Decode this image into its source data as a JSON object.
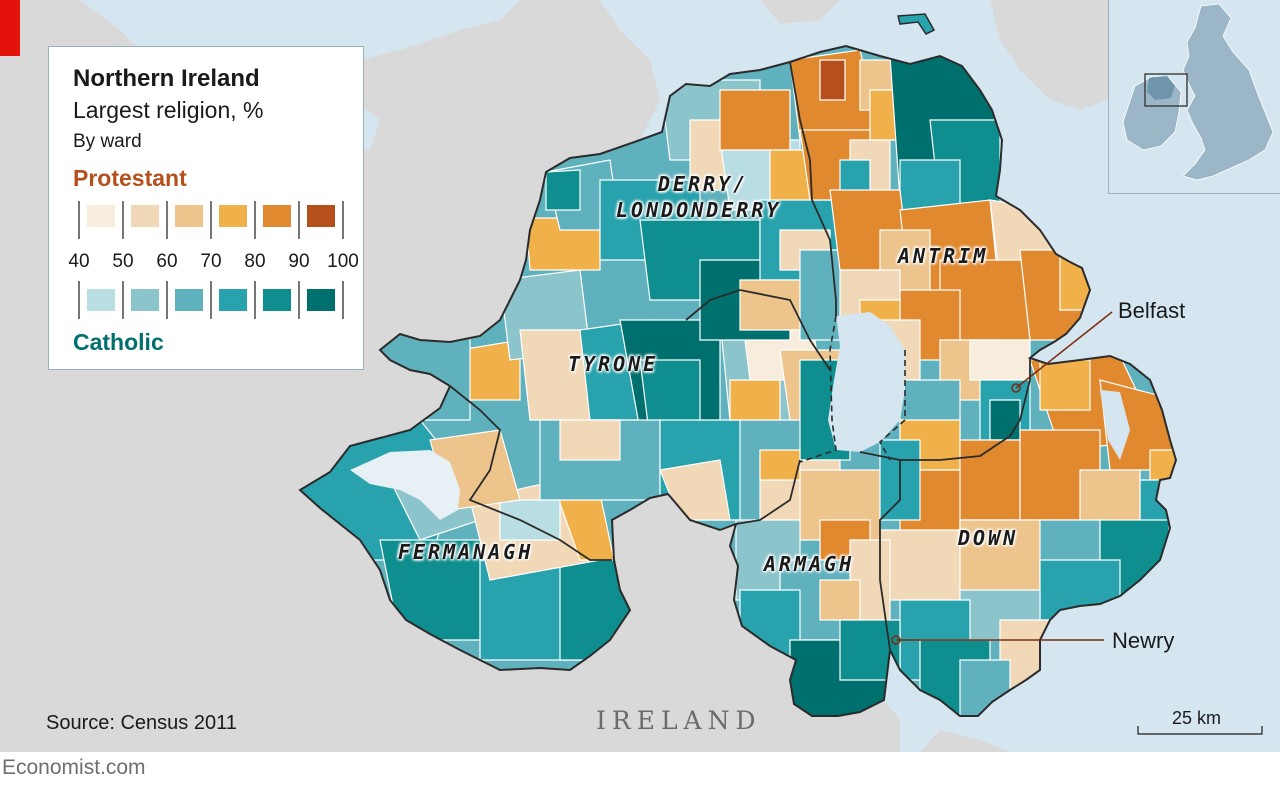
{
  "legend": {
    "title": "Northern Ireland",
    "subtitle": "Largest religion, %",
    "by": "By ward",
    "protestant_label": "Protestant",
    "catholic_label": "Catholic",
    "tick_labels": [
      "40",
      "50",
      "60",
      "70",
      "80",
      "90",
      "100"
    ],
    "protestant_colors": [
      "#f8ecdc",
      "#f1d8b6",
      "#ecc48c",
      "#f0b04a",
      "#e0892e",
      "#b5501c"
    ],
    "catholic_colors": [
      "#b8dde2",
      "#8cc4cc",
      "#5fb2bd",
      "#28a2ad",
      "#0e8e8e",
      "#00706f"
    ]
  },
  "regions": {
    "derry": "DERRY/",
    "londonderry": "LONDONDERRY",
    "antrim": "ANTRIM",
    "tyrone": "TYRONE",
    "fermanagh": "FERMANAGH",
    "armagh": "ARMAGH",
    "down": "DOWN"
  },
  "cities": {
    "belfast": "Belfast",
    "newry": "Newry"
  },
  "country": "IRELAND",
  "source": "Source: Census 2011",
  "scale": "25 km",
  "footer": "Economist.com",
  "colors": {
    "water": "#d6e6f0",
    "land_other": "#d9d9d9",
    "accent_red": "#e3120b",
    "marker": "#7a2a10"
  }
}
